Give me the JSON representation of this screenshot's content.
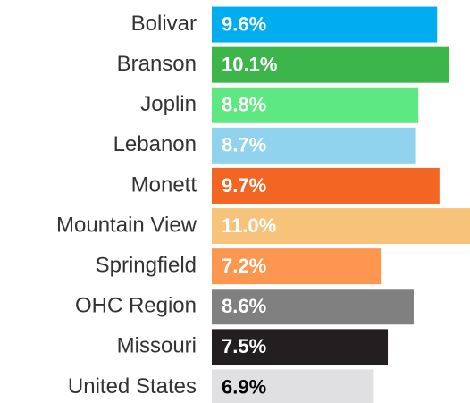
{
  "chart_data": {
    "type": "bar",
    "orientation": "horizontal",
    "categories": [
      "Bolivar",
      "Branson",
      "Joplin",
      "Lebanon",
      "Monett",
      "Mountain View",
      "Springfield",
      "OHC Region",
      "Missouri",
      "United States"
    ],
    "values": [
      9.6,
      10.1,
      8.8,
      8.7,
      9.7,
      11.0,
      7.2,
      8.6,
      7.5,
      6.9
    ],
    "value_labels": [
      "9.6%",
      "10.1%",
      "8.8%",
      "8.7%",
      "9.7%",
      "11.0%",
      "7.2%",
      "8.6%",
      "7.5%",
      "6.9%"
    ],
    "colors": [
      "#00aeef",
      "#3cb54a",
      "#5ee882",
      "#8fd3ee",
      "#f26522",
      "#f7c37a",
      "#fd9750",
      "#808080",
      "#231f20",
      "#e0e0e2"
    ]
  }
}
